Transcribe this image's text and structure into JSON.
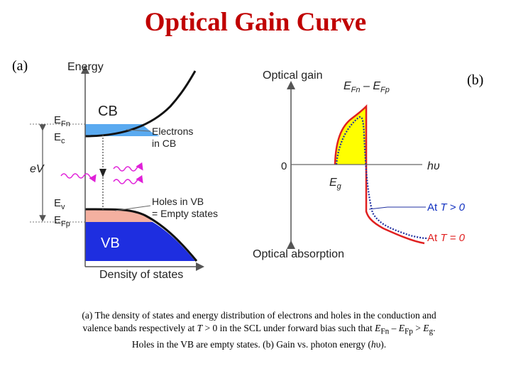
{
  "title": "Optical Gain Curve",
  "panel_a": {
    "label": "(a)",
    "axis_y_label": "Energy",
    "axis_x_label": "Density of states",
    "cb_label": "CB",
    "vb_label": "VB",
    "efn": {
      "main": "E",
      "sub": "Fn"
    },
    "ec": {
      "main": "E",
      "sub": "c"
    },
    "ev": {
      "main": "E",
      "sub": "v"
    },
    "efp": {
      "main": "E",
      "sub": "Fp"
    },
    "ev_label": "eV",
    "electrons_line1": "Electrons",
    "electrons_line2": "in CB",
    "holes_line1": "Holes in VB",
    "holes_line2": "= Empty states",
    "colors": {
      "cb_electrons": "#5aaaf0",
      "vb_holes": "#f4b0a0",
      "vb_filled": "#1e2ee0",
      "photon": "#e020d8"
    }
  },
  "panel_b": {
    "label": "(b)",
    "axis_top_label": "Optical gain",
    "axis_bottom_label": "Optical absorption",
    "zero_label": "0",
    "photon_axis_label": "hυ",
    "eg": {
      "main": "E",
      "sub": "g"
    },
    "efn_efp": {
      "a_main": "E",
      "a_sub": "Fn",
      "minus": " – ",
      "b_main": "E",
      "b_sub": "Fp"
    },
    "curve_hot_prefix": "At ",
    "curve_hot_suffix": "T > 0",
    "curve_zero_prefix": "At ",
    "curve_zero_suffix": "T = 0",
    "colors": {
      "gain_fill": "#ffff00",
      "t0_curve": "#e02020",
      "t_hot_curve": "#2030a0",
      "text_blue": "#1030c0"
    }
  },
  "caption": {
    "line1": "(a) The density of states and energy distribution of electrons and holes in the conduction and",
    "line2_a": "valence bands respectively at ",
    "line2_T": "T",
    "line2_b": " > 0 in the SCL under forward bias such that ",
    "line2_E1": "E",
    "line2_E1sub": "Fn",
    "line2_minus": " – ",
    "line2_E2": "E",
    "line2_E2sub": "Fp",
    "line2_gt": " > ",
    "line2_E3": "E",
    "line2_E3sub": "g",
    "line2_end": ".",
    "line3_a": "Holes in the VB are empty states. (b) Gain vs. photon energy (",
    "line3_h": "h",
    "line3_nu": "υ",
    "line3_end": ")."
  }
}
